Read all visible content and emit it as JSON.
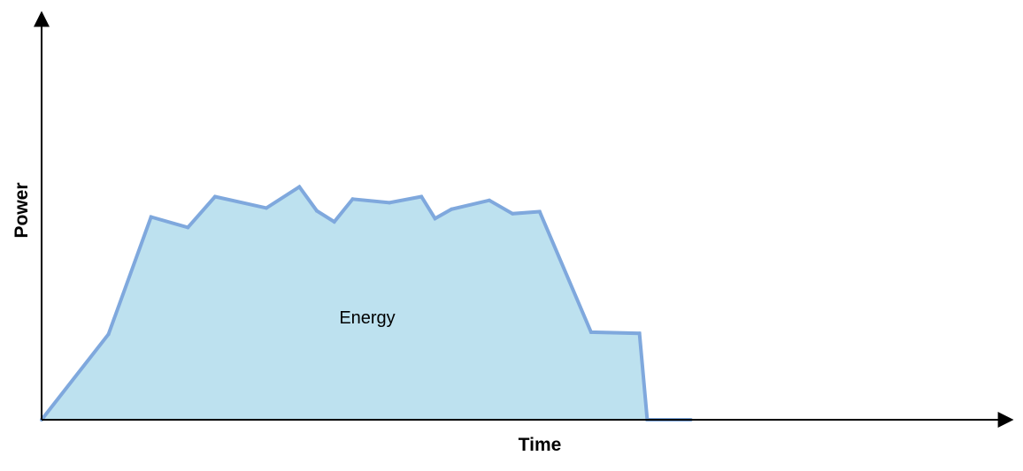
{
  "chart_data": {
    "type": "area",
    "title": "",
    "xlabel": "Time",
    "ylabel": "Power",
    "annotation": "Energy",
    "xlim": [
      0,
      100
    ],
    "ylim": [
      0,
      100
    ],
    "grid": false,
    "axis_ticks": false,
    "series": [
      {
        "x": [
          0,
          6.9,
          11.3,
          15.1,
          17.9,
          23.2,
          26.6,
          28.4,
          30.2,
          32.1,
          35.9,
          39.2,
          40.6,
          42.3,
          46.2,
          48.6,
          51.4,
          56.7,
          61.7,
          62.5,
          67.0
        ],
        "y": [
          0,
          21.1,
          50.0,
          47.4,
          55.0,
          52.2,
          57.4,
          51.5,
          48.8,
          54.4,
          53.5,
          55.0,
          49.6,
          51.9,
          54.1,
          50.8,
          51.3,
          21.6,
          21.3,
          0,
          0
        ],
        "values": [
          0,
          21.1,
          50.0,
          47.4,
          55.0,
          52.2,
          57.4,
          51.5,
          48.8,
          54.4,
          53.5,
          55.0,
          49.6,
          51.9,
          54.1,
          50.8,
          51.3,
          21.6,
          21.3,
          0,
          0
        ]
      }
    ],
    "colors": {
      "fill": "#bde1ef",
      "line": "#7fa8dd",
      "axis": "#000000"
    }
  }
}
